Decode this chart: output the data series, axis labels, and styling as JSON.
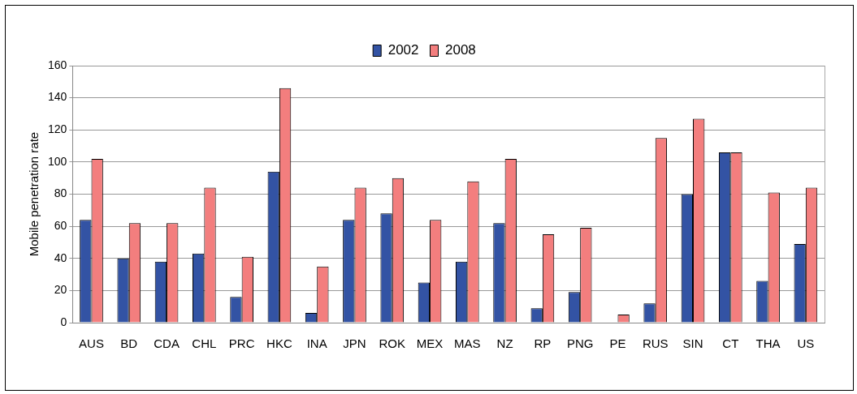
{
  "chart_data": {
    "type": "bar",
    "ylabel": "Mobile penetration rate",
    "categories": [
      "AUS",
      "BD",
      "CDA",
      "CHL",
      "PRC",
      "HKC",
      "INA",
      "JPN",
      "ROK",
      "MEX",
      "MAS",
      "NZ",
      "RP",
      "PNG",
      "PE",
      "RUS",
      "SIN",
      "CT",
      "THA",
      "US"
    ],
    "series": [
      {
        "name": "2002",
        "color": "#3353a4",
        "values": [
          64,
          40,
          38,
          43,
          16,
          94,
          6,
          64,
          68,
          25,
          38,
          62,
          9,
          19,
          null,
          12,
          80,
          106,
          26,
          49
        ]
      },
      {
        "name": "2008",
        "color": "#f37e7e",
        "values": [
          102,
          62,
          62,
          84,
          41,
          146,
          35,
          84,
          90,
          64,
          88,
          102,
          55,
          59,
          5,
          115,
          127,
          106,
          81,
          84
        ]
      }
    ],
    "ylim": [
      0,
      160
    ],
    "yticks": [
      0,
      20,
      40,
      60,
      80,
      100,
      120,
      140,
      160
    ],
    "grid": "y",
    "legend": "top"
  }
}
